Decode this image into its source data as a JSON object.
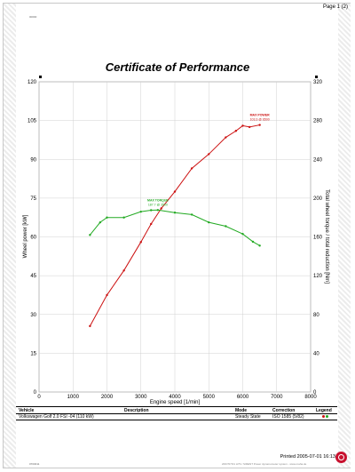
{
  "page": {
    "page_number": "Page 1 (2)",
    "doc_id": "00000",
    "footer_code": "0703011",
    "footer_text": "2007/07/01 LPS / SIRENT Power dynamometer system - www.maha.de"
  },
  "title": "Certificate of Performance",
  "table": {
    "headers": {
      "vehicle": "Vehicle",
      "description": "Description",
      "mode": "Mode",
      "correction": "Correction",
      "legend": "Legend"
    },
    "row": {
      "vehicle": "Volkswagen Golf 2.0 FSI -04 (110 kW)",
      "description": "",
      "mode": "Steady State",
      "correction": "ISO 1585 (5/82)"
    }
  },
  "printed": "Printed 2005-07-01 16:13",
  "colors": {
    "power": "#cc1111",
    "torque": "#22aa22",
    "grid": "#d0d0d0"
  },
  "chart_data": {
    "type": "line",
    "xlabel": "Engine speed [1/min]",
    "ylabel_left": "Wheel power [kW]",
    "ylabel_right": "Total wheel torque / total reduction [Nm]",
    "xlim": [
      0,
      8000
    ],
    "ylim_left": [
      0,
      120
    ],
    "ylim_right": [
      0,
      320
    ],
    "x_ticks": [
      0,
      1000,
      2000,
      3000,
      4000,
      5000,
      6000,
      7000,
      8000
    ],
    "y_ticks_left": [
      0,
      15,
      30,
      45,
      60,
      75,
      90,
      105,
      120
    ],
    "y_ticks_right": [
      0,
      40,
      80,
      120,
      160,
      200,
      240,
      280,
      320
    ],
    "grid": true,
    "series": [
      {
        "name": "Wheel power",
        "axis": "left",
        "color": "#cc1111",
        "x": [
          1500,
          2000,
          2500,
          3000,
          3300,
          3600,
          4000,
          4500,
          5000,
          5500,
          5800,
          6000,
          6200,
          6500
        ],
        "y": [
          25.5,
          37.5,
          47,
          58,
          65,
          71,
          77.5,
          86.5,
          92,
          98.5,
          101,
          103,
          102.5,
          103.3
        ]
      },
      {
        "name": "Torque",
        "axis": "right",
        "color": "#22aa22",
        "x": [
          1500,
          1800,
          2000,
          2500,
          3000,
          3300,
          3500,
          4000,
          4500,
          5000,
          5500,
          6000,
          6300,
          6500
        ],
        "y": [
          162,
          175,
          180,
          180,
          186,
          187.5,
          187.7,
          185,
          183,
          175,
          171,
          163,
          155,
          151
        ]
      }
    ],
    "annotations": [
      {
        "label": "MAX POWER",
        "value": "103.3 @ 6500",
        "series": "Wheel power"
      },
      {
        "label": "MAX TORQUE",
        "value": "187.7 @ 3500",
        "series": "Torque"
      }
    ]
  }
}
